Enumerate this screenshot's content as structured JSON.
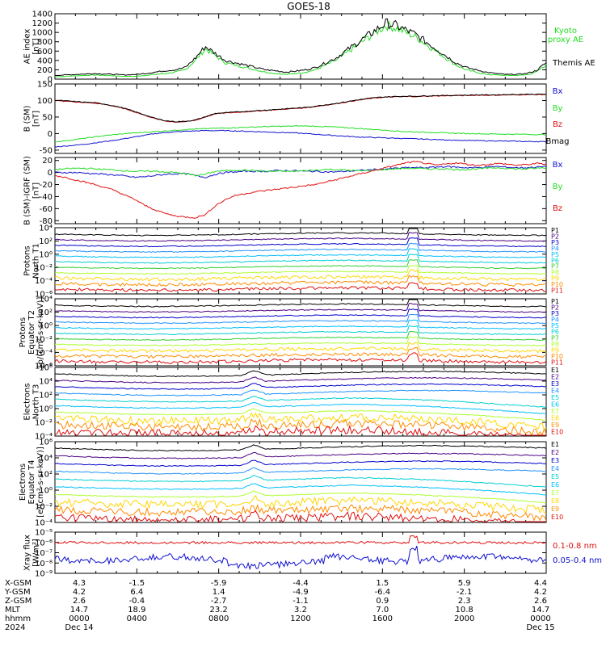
{
  "title": "GOES-18",
  "colors": {
    "black": "#000000",
    "green": "#22dd22",
    "blue": "#1010d0",
    "red": "#e01010",
    "darkred": "#b00000"
  },
  "chart_data": [
    {
      "type": "line",
      "ylabel": [
        "AE index",
        "[nT]"
      ],
      "ylim": [
        0,
        1400
      ],
      "yticks": [
        "0",
        "200",
        "400",
        "600",
        "800",
        "1000",
        "1200",
        "1400"
      ],
      "series": [
        {
          "name": "Kyoto proxy AE",
          "color": "#22dd22",
          "values": [
            50,
            60,
            70,
            80,
            90,
            80,
            70,
            60,
            60,
            80,
            100,
            120,
            150,
            200,
            400,
            650,
            500,
            350,
            300,
            250,
            200,
            150,
            120,
            100,
            120,
            150,
            200,
            300,
            400,
            550,
            700,
            850,
            1000,
            1150,
            1100,
            1000,
            900,
            750,
            600,
            450,
            300,
            200,
            150,
            100,
            90,
            80,
            80,
            90,
            150,
            300
          ]
        },
        {
          "name": "Themis AE",
          "color": "#000000",
          "values": [
            80,
            90,
            100,
            110,
            120,
            110,
            100,
            90,
            100,
            120,
            150,
            180,
            200,
            250,
            450,
            700,
            550,
            400,
            350,
            300,
            250,
            200,
            180,
            150,
            170,
            200,
            250,
            350,
            450,
            600,
            750,
            900,
            1050,
            1200,
            1150,
            1050,
            950,
            800,
            650,
            500,
            350,
            250,
            200,
            150,
            120,
            100,
            100,
            120,
            180,
            350
          ]
        }
      ],
      "legend": [
        [
          "Kyoto",
          "proxy AE"
        ],
        [
          "Themis AE"
        ]
      ]
    },
    {
      "type": "line",
      "ylabel": [
        "B (SM)",
        "[nT]"
      ],
      "ylim": [
        -60,
        150
      ],
      "yticks": [
        "150",
        "100",
        "50",
        "0",
        "-50"
      ],
      "series": [
        {
          "name": "Bx",
          "color": "#1010d0",
          "values": [
            -40,
            -38,
            -35,
            -32,
            -28,
            -24,
            -20,
            -15,
            -10,
            -5,
            0,
            3,
            5,
            7,
            8,
            9,
            9,
            9,
            8,
            7,
            6,
            5,
            4,
            3,
            2,
            0,
            -2,
            -4,
            -6,
            -8,
            -10,
            -11,
            -12,
            -13,
            -14,
            -15,
            -16,
            -17,
            -18,
            -19,
            -20,
            -21,
            -21,
            -22,
            -22,
            -23,
            -23,
            -24,
            -24,
            -25
          ]
        },
        {
          "name": "By",
          "color": "#22dd22",
          "values": [
            -25,
            -22,
            -18,
            -14,
            -10,
            -6,
            -3,
            0,
            2,
            4,
            6,
            8,
            10,
            12,
            14,
            15,
            16,
            17,
            18,
            19,
            20,
            21,
            22,
            22,
            23,
            23,
            22,
            21,
            20,
            18,
            16,
            14,
            12,
            10,
            8,
            6,
            5,
            4,
            3,
            2,
            1,
            0,
            0,
            -1,
            -1,
            -2,
            -2,
            -2,
            -3,
            -3
          ]
        },
        {
          "name": "Bz",
          "color": "#e01010",
          "values": [
            100,
            98,
            96,
            94,
            92,
            88,
            82,
            75,
            65,
            55,
            45,
            38,
            35,
            36,
            40,
            50,
            60,
            62,
            64,
            66,
            68,
            70,
            72,
            74,
            76,
            78,
            82,
            86,
            90,
            95,
            100,
            104,
            108,
            110,
            111,
            112,
            112,
            113,
            114,
            114,
            115,
            115,
            116,
            116,
            116,
            117,
            117,
            118,
            118,
            118
          ]
        },
        {
          "name": "Bmag",
          "color": "#000000",
          "values": [
            101,
            99,
            97,
            95,
            93,
            89,
            83,
            76,
            66,
            56,
            46,
            39,
            36,
            37,
            41,
            51,
            61,
            63,
            65,
            67,
            69,
            71,
            73,
            75,
            77,
            79,
            83,
            87,
            91,
            96,
            101,
            105,
            109,
            111,
            112,
            113,
            113,
            114,
            115,
            115,
            116,
            116,
            117,
            117,
            117,
            118,
            118,
            119,
            119,
            119
          ]
        }
      ]
    },
    {
      "type": "line",
      "ylabel": [
        "B (SM)-IGRF (SM)",
        "[nT]"
      ],
      "ylim": [
        -85,
        25
      ],
      "yticks": [
        "20",
        "0",
        "-20",
        "-40",
        "-60",
        "-80"
      ],
      "series": [
        {
          "name": "Bx",
          "color": "#1010d0",
          "values": [
            0,
            0,
            0,
            -1,
            -2,
            -3,
            -4,
            -6,
            -8,
            -7,
            -5,
            -3,
            -2,
            -2,
            -5,
            -8,
            -3,
            0,
            1,
            2,
            2,
            2,
            3,
            3,
            3,
            2,
            2,
            1,
            1,
            2,
            3,
            4,
            5,
            6,
            7,
            8,
            8,
            8,
            9,
            10,
            9,
            8,
            8,
            9,
            10,
            9,
            8,
            8,
            9,
            10
          ]
        },
        {
          "name": "By",
          "color": "#22dd22",
          "values": [
            5,
            6,
            7,
            7,
            6,
            5,
            4,
            3,
            2,
            2,
            2,
            1,
            0,
            -2,
            -5,
            -3,
            2,
            3,
            4,
            4,
            3,
            2,
            2,
            2,
            2,
            3,
            4,
            5,
            5,
            4,
            3,
            3,
            4,
            5,
            6,
            7,
            7,
            6,
            6,
            6,
            5,
            5,
            6,
            7,
            8,
            7,
            6,
            6,
            7,
            8
          ]
        },
        {
          "name": "Bz",
          "color": "#e01010",
          "values": [
            -5,
            -8,
            -12,
            -16,
            -20,
            -25,
            -30,
            -38,
            -45,
            -55,
            -62,
            -68,
            -72,
            -74,
            -75,
            -70,
            -55,
            -45,
            -38,
            -35,
            -32,
            -30,
            -28,
            -26,
            -24,
            -22,
            -20,
            -16,
            -12,
            -8,
            -4,
            0,
            4,
            8,
            12,
            16,
            18,
            15,
            12,
            14,
            16,
            14,
            12,
            13,
            15,
            14,
            12,
            13,
            15,
            14
          ]
        }
      ]
    },
    {
      "type": "line",
      "ylabel": [
        "Protons",
        "North T1"
      ],
      "ylim": [
        "1e-6",
        "1e4"
      ],
      "yticks": [
        "10⁴",
        "10²",
        "10⁰",
        "10⁻²",
        "10⁻⁴",
        "10⁻⁶"
      ],
      "channels": [
        "P1",
        "P2",
        "P3",
        "P4",
        "P5",
        "P6",
        "P7",
        "P8",
        "P9",
        "P10",
        "P11"
      ],
      "channel_colors": [
        "#000000",
        "#4b0082",
        "#0000cd",
        "#1e90ff",
        "#00bfff",
        "#00ced1",
        "#32cd32",
        "#adff2f",
        "#ffd700",
        "#ff8c00",
        "#e01010"
      ]
    },
    {
      "type": "line",
      "ylabel": [
        "Protons",
        "Equator T2",
        "[p/(cm²-s-sr-keV)]"
      ],
      "ylim": [
        "1e-6",
        "1e4"
      ],
      "yticks": [
        "10⁴",
        "10²",
        "10⁰",
        "10⁻²",
        "10⁻⁴",
        "10⁻⁶"
      ],
      "channels": [
        "P1",
        "P2",
        "P3",
        "P4",
        "P5",
        "P6",
        "P7",
        "P8",
        "P9",
        "P10",
        "P11"
      ],
      "channel_colors": [
        "#000000",
        "#4b0082",
        "#0000cd",
        "#1e90ff",
        "#00bfff",
        "#00ced1",
        "#32cd32",
        "#adff2f",
        "#ffd700",
        "#ff8c00",
        "#e01010"
      ]
    },
    {
      "type": "line",
      "ylabel": [
        "Electrons",
        "North T3"
      ],
      "ylim": [
        "1e-4",
        "1e6"
      ],
      "yticks": [
        "10⁶",
        "10⁴",
        "10²",
        "10⁰",
        "10⁻²",
        "10⁻⁴"
      ],
      "channels": [
        "E1",
        "E2",
        "E3",
        "E4",
        "E5",
        "E6",
        "E7",
        "E8",
        "E9",
        "E10"
      ],
      "channel_colors": [
        "#000000",
        "#4b0082",
        "#0000cd",
        "#1e90ff",
        "#00ced1",
        "#00bfff",
        "#adff2f",
        "#ffd700",
        "#ff8c00",
        "#e01010"
      ]
    },
    {
      "type": "line",
      "ylabel": [
        "Electrons",
        "Equator T4",
        "[e/(cm²-s-sr-keV)]"
      ],
      "ylim": [
        "1e-4",
        "1e6"
      ],
      "yticks": [
        "10⁶",
        "10⁴",
        "10²",
        "10⁰",
        "10⁻²",
        "10⁻⁴"
      ],
      "channels": [
        "E1",
        "E2",
        "E3",
        "E4",
        "E5",
        "E6",
        "E7",
        "E8",
        "E9",
        "E10"
      ],
      "channel_colors": [
        "#000000",
        "#4b0082",
        "#0000cd",
        "#1e90ff",
        "#00ced1",
        "#00bfff",
        "#adff2f",
        "#ffd700",
        "#ff8c00",
        "#e01010"
      ]
    },
    {
      "type": "line",
      "ylabel": [
        "Xray flux",
        "[W/m²]"
      ],
      "ylim": [
        "1e-9",
        "1e-5"
      ],
      "yticks": [
        "10⁻⁵",
        "10⁻⁶",
        "10⁻⁷",
        "10⁻⁸",
        "10⁻⁹"
      ],
      "series": [
        {
          "name": "0.1-0.8 nm",
          "color": "#e01010"
        },
        {
          "name": "0.05-0.4 nm",
          "color": "#1010d0"
        }
      ]
    }
  ],
  "xaxis": {
    "row_labels": [
      "X-GSM",
      "Y-GSM",
      "Z-GSM",
      "MLT",
      "hhmm",
      "2024"
    ],
    "columns": [
      {
        "x": "4.3",
        "y": "4.2",
        "z": "2.6",
        "mlt": "14.7",
        "hhmm": "0000",
        "date": "Dec 14"
      },
      {
        "x": "-1.5",
        "y": "6.4",
        "z": "-0.4",
        "mlt": "18.9",
        "hhmm": "0400",
        "date": ""
      },
      {
        "x": "-5.9",
        "y": "1.4",
        "z": "-2.7",
        "mlt": "23.2",
        "hhmm": "0800",
        "date": ""
      },
      {
        "x": "-4.4",
        "y": "-4.9",
        "z": "-1.1",
        "mlt": "3.2",
        "hhmm": "1200",
        "date": ""
      },
      {
        "x": "1.5",
        "y": "-6.4",
        "z": "0.9",
        "mlt": "7.0",
        "hhmm": "1600",
        "date": ""
      },
      {
        "x": "5.9",
        "y": "-2.1",
        "z": "2.3",
        "mlt": "10.8",
        "hhmm": "2000",
        "date": ""
      },
      {
        "x": "4.4",
        "y": "4.2",
        "z": "2.6",
        "mlt": "14.7",
        "hhmm": "0000",
        "date": "Dec 15"
      }
    ]
  }
}
